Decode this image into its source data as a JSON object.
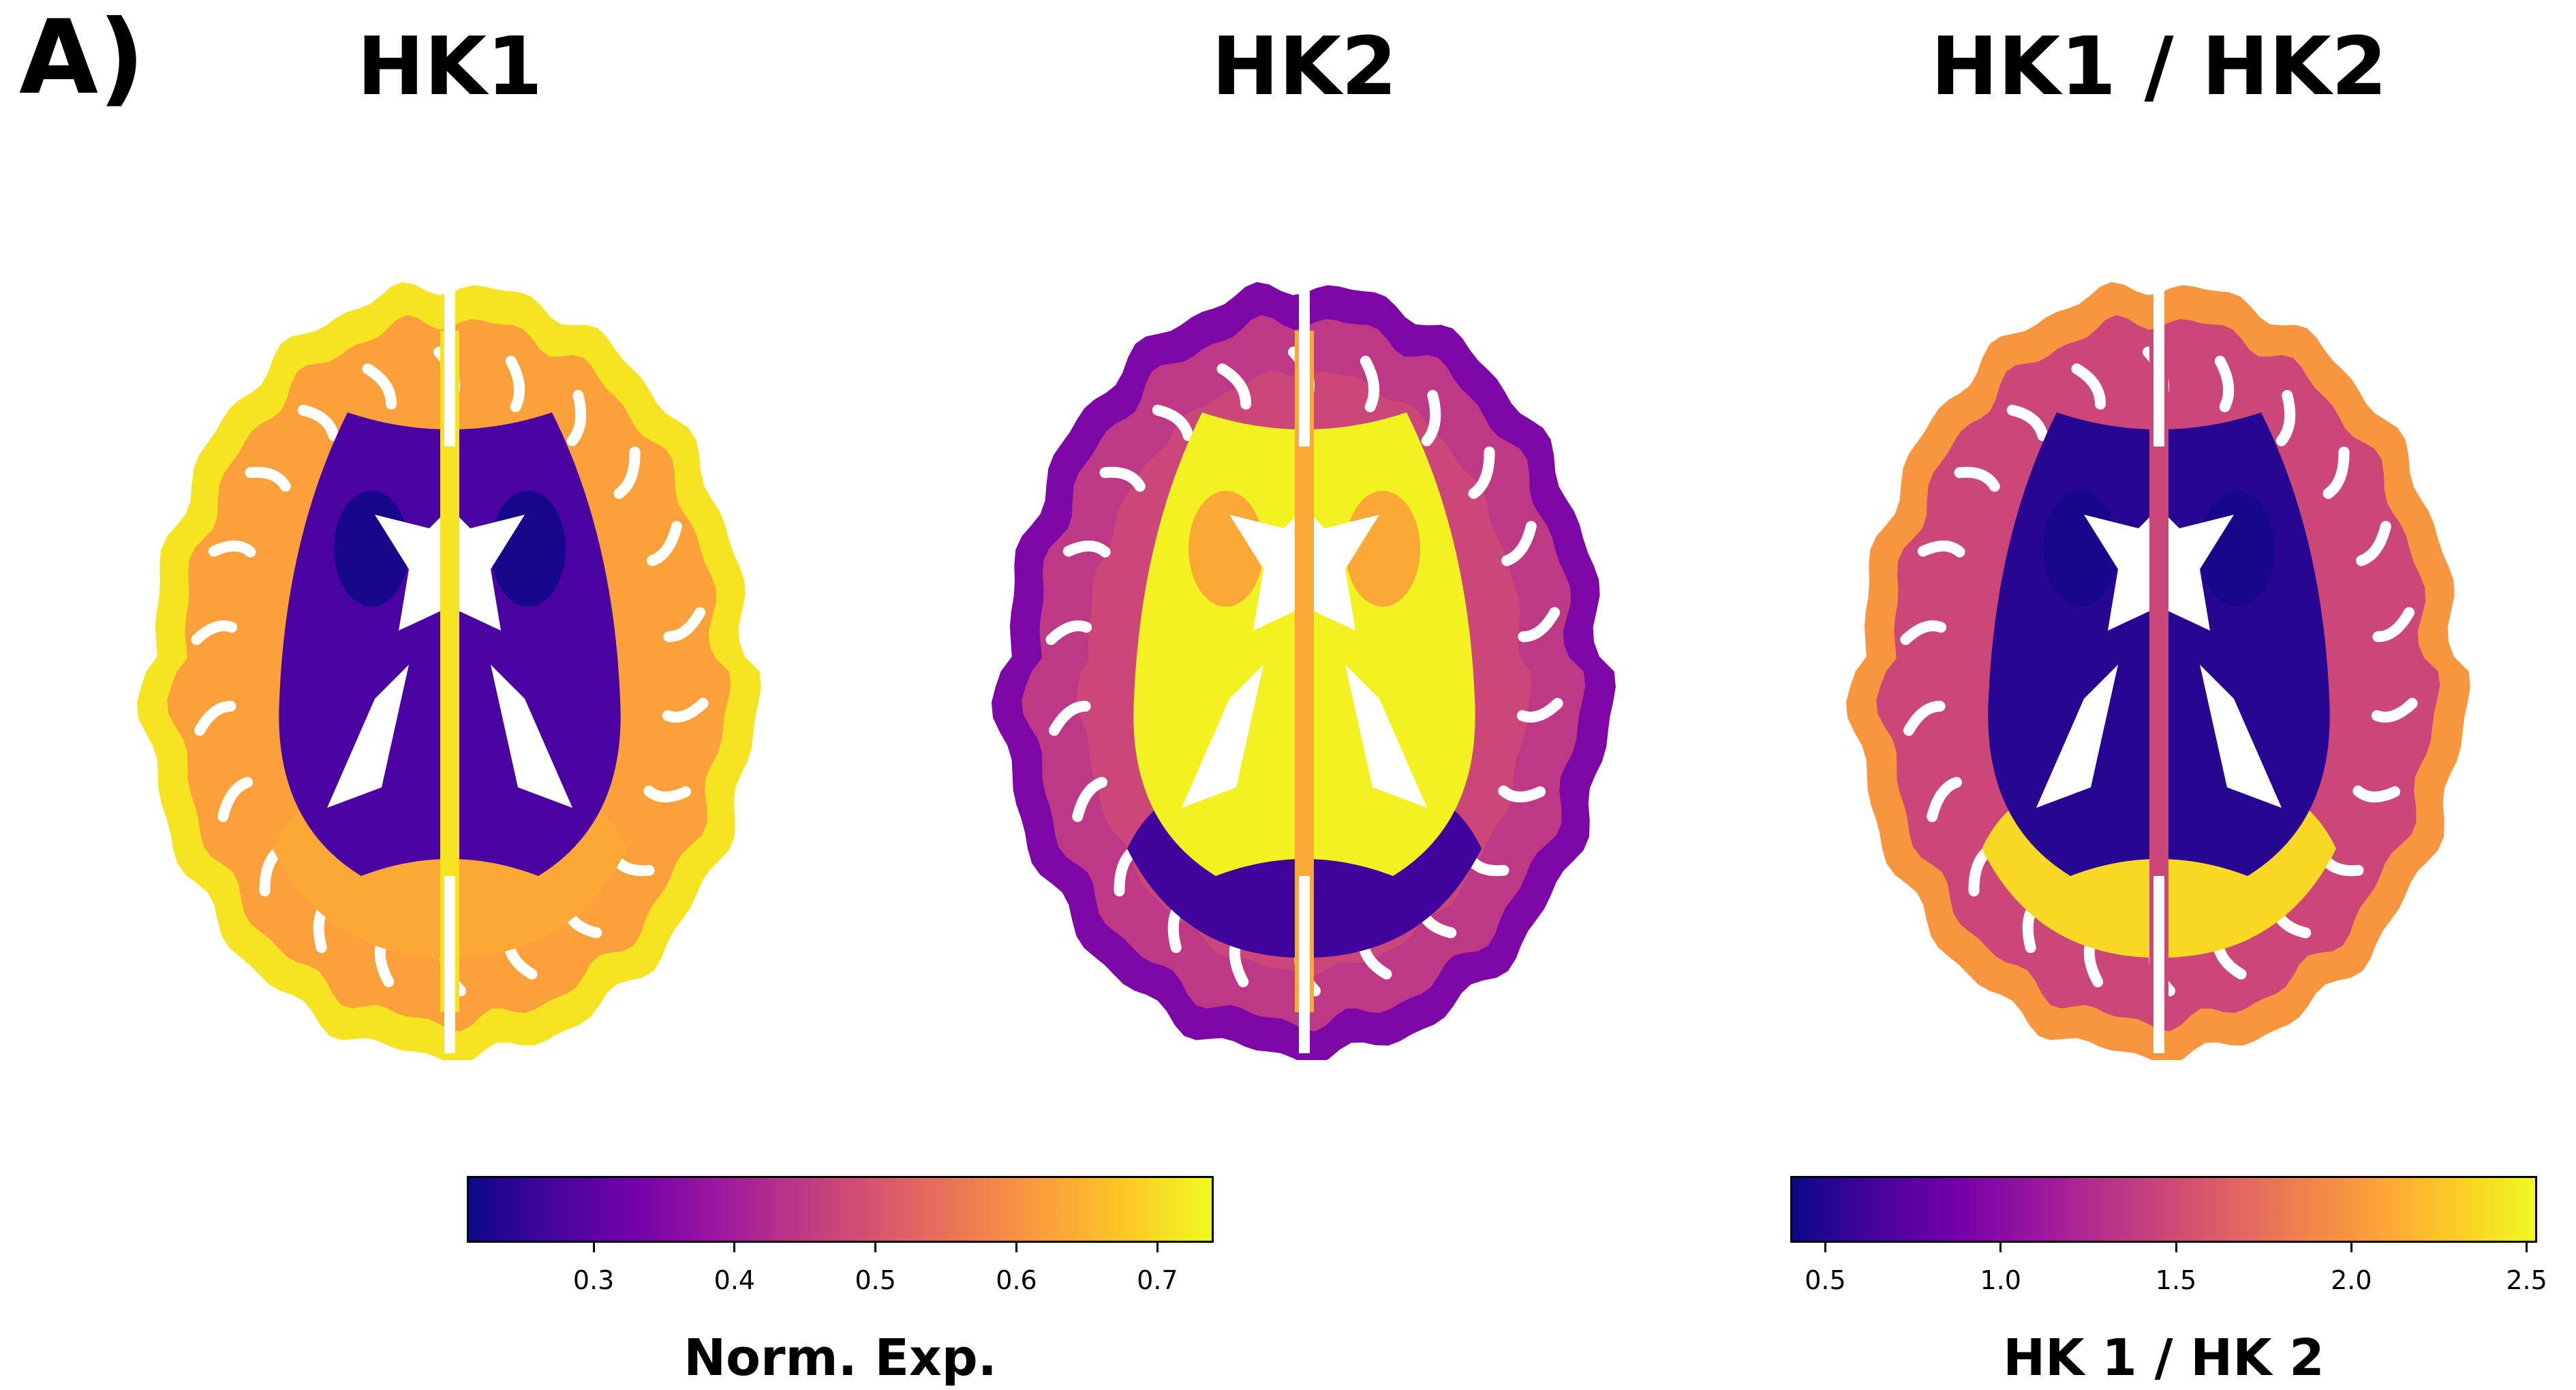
{
  "figure": {
    "panel_label": "A)",
    "colors": {
      "plasma_stops": [
        "#0d0887",
        "#46039f",
        "#7201a8",
        "#9c179e",
        "#bd3786",
        "#d8576b",
        "#ed7953",
        "#fb9f3a",
        "#fdca26",
        "#f0f921"
      ],
      "hole": "#ffffff"
    },
    "brains": [
      {
        "title": "HK1",
        "levels": {
          "cortex_outer": 0.95,
          "cortex_inner": 0.78,
          "white_matter": 0.78,
          "deep_matter": 0.12,
          "nucleus": 0.02,
          "posterior": 0.8,
          "midline": 0.95
        }
      },
      {
        "title": "HK2",
        "levels": {
          "cortex_outer": 0.25,
          "cortex_inner": 0.45,
          "white_matter": 0.5,
          "deep_matter": 0.98,
          "nucleus": 0.8,
          "posterior": 0.1,
          "midline": 0.8
        }
      },
      {
        "title": "HK1 / HK2",
        "levels": {
          "cortex_outer": 0.75,
          "cortex_inner": 0.5,
          "white_matter": 0.5,
          "deep_matter": 0.05,
          "nucleus": 0.02,
          "posterior": 0.92,
          "midline": 0.5
        }
      }
    ],
    "colorbars": [
      {
        "title": "Norm. Exp.",
        "range": [
          0.21,
          0.74
        ],
        "ticks": [
          "0.3",
          "0.4",
          "0.5",
          "0.6",
          "0.7"
        ]
      },
      {
        "title": "HK 1 / HK 2",
        "range": [
          0.4,
          2.53
        ],
        "ticks": [
          "0.5",
          "1.0",
          "1.5",
          "2.0",
          "2.5"
        ]
      }
    ]
  }
}
